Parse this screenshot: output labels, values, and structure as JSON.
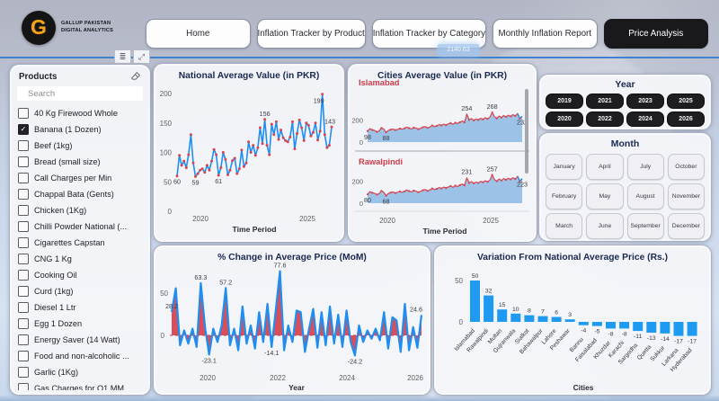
{
  "brand": {
    "line1": "GALLUP PAKISTAN",
    "line2": "DIGITAL ANALYTICS",
    "logo_letter": "G"
  },
  "nav": {
    "items": [
      {
        "label": "Home",
        "active": false
      },
      {
        "label": "Inflation Tracker by Product",
        "active": false
      },
      {
        "label": "Inflation Tracker by Category",
        "active": false
      },
      {
        "label": "Monthly Inflation Report",
        "active": false
      },
      {
        "label": "Price Analysis",
        "active": true
      }
    ]
  },
  "toolbar": {
    "filter_icon": "filter-lines",
    "focus_icon": "expand-arrow"
  },
  "ghost": {
    "value": "2140.63"
  },
  "products_panel": {
    "title": "Products",
    "search_placeholder": "Search",
    "items": [
      {
        "label": "40 Kg Firewood Whole",
        "checked": false
      },
      {
        "label": "Banana (1 Dozen)",
        "checked": true
      },
      {
        "label": "Beef (1kg)",
        "checked": false
      },
      {
        "label": "Bread (small size)",
        "checked": false
      },
      {
        "label": "Call Charges per Min",
        "checked": false
      },
      {
        "label": "Chappal Bata (Gents)",
        "checked": false
      },
      {
        "label": "Chicken (1Kg)",
        "checked": false
      },
      {
        "label": "Chilli Powder National (...",
        "checked": false
      },
      {
        "label": "Cigarettes Capstan",
        "checked": false
      },
      {
        "label": "CNG 1 Kg",
        "checked": false
      },
      {
        "label": "Cooking Oil",
        "checked": false
      },
      {
        "label": "Curd (1kg)",
        "checked": false
      },
      {
        "label": "Diesel 1 Ltr",
        "checked": false
      },
      {
        "label": "Egg 1 Dozen",
        "checked": false
      },
      {
        "label": "Energy Saver (14 Watt)",
        "checked": false
      },
      {
        "label": "Food and non-alcoholic ...",
        "checked": false
      },
      {
        "label": "Garlic (1Kg)",
        "checked": false
      },
      {
        "label": "Gas Charges for Q1 MM...",
        "checked": false
      }
    ]
  },
  "year_panel": {
    "title": "Year",
    "years": [
      "2019",
      "2021",
      "2023",
      "2025",
      "2020",
      "2022",
      "2024",
      "2026"
    ]
  },
  "month_panel": {
    "title": "Month",
    "months": [
      "January",
      "April",
      "July",
      "October",
      "February",
      "May",
      "August",
      "November",
      "March",
      "June",
      "September",
      "December"
    ]
  },
  "chart_data": [
    {
      "type": "line",
      "title": "National Average Value (in PKR)",
      "xlabel": "Time Period",
      "x_ticks": [
        "2020",
        "2025"
      ],
      "y_ticks": [
        0,
        50,
        100,
        150,
        200
      ],
      "ylim": [
        0,
        200
      ],
      "values": [
        60,
        95,
        78,
        85,
        74,
        96,
        130,
        82,
        59,
        64,
        70,
        72,
        66,
        78,
        70,
        85,
        105,
        96,
        61,
        74,
        100,
        88,
        62,
        70,
        86,
        90,
        64,
        72,
        104,
        76,
        82,
        118,
        100,
        112,
        95,
        108,
        142,
        115,
        156,
        112,
        96,
        148,
        130,
        152,
        122,
        138,
        125,
        120,
        118,
        126,
        152,
        106,
        132,
        155,
        142,
        120,
        150,
        146,
        128,
        134,
        150,
        121,
        136,
        199,
        130,
        108,
        112,
        143
      ],
      "point_labels": [
        {
          "i": 0,
          "text": "60",
          "pos": "below"
        },
        {
          "i": 8,
          "text": "59",
          "pos": "below"
        },
        {
          "i": 18,
          "text": "61",
          "pos": "below"
        },
        {
          "i": 38,
          "text": "156",
          "pos": "above"
        },
        {
          "i": 63,
          "text": "199",
          "pos": "above",
          "dx": -4,
          "dy": 14
        },
        {
          "i": 67,
          "text": "143",
          "pos": "above",
          "dx": -2
        }
      ]
    },
    {
      "type": "area",
      "title": "Cities Average Value (in PKR)",
      "xlabel": "Time Period",
      "x_ticks": [
        "2020",
        "2025"
      ],
      "series": [
        {
          "name": "Islamabad",
          "y_ticks": [
            0,
            200
          ],
          "values": [
            98,
            122,
            110,
            106,
            92,
            100,
            128,
            118,
            88,
            105,
            112,
            118,
            108,
            114,
            122,
            116,
            124,
            135,
            126,
            118,
            130,
            126,
            116,
            124,
            134,
            140,
            128,
            136,
            150,
            140,
            146,
            158,
            150,
            162,
            154,
            165,
            172,
            160,
            175,
            168,
            180,
            190,
            178,
            254,
            200,
            212,
            196,
            208,
            200,
            215,
            205,
            220,
            210,
            225,
            268,
            230,
            215,
            235,
            222,
            240,
            228,
            242,
            232,
            248,
            236,
            258,
            212,
            232
          ],
          "point_labels": [
            {
              "i": 0,
              "text": "98",
              "pos": "below"
            },
            {
              "i": 8,
              "text": "88",
              "pos": "below"
            },
            {
              "i": 43,
              "text": "254",
              "pos": "above"
            },
            {
              "i": 54,
              "text": "268",
              "pos": "above"
            },
            {
              "i": 67,
              "text": "232",
              "pos": "below"
            }
          ]
        },
        {
          "name": "Rawalpindi",
          "y_ticks": [
            0,
            200
          ],
          "values": [
            80,
            105,
            95,
            90,
            78,
            86,
            112,
            100,
            68,
            88,
            96,
            102,
            92,
            98,
            106,
            100,
            108,
            120,
            110,
            102,
            114,
            110,
            100,
            108,
            118,
            124,
            112,
            120,
            134,
            124,
            130,
            142,
            134,
            146,
            138,
            148,
            156,
            144,
            160,
            152,
            164,
            174,
            162,
            231,
            184,
            196,
            180,
            192,
            184,
            198,
            190,
            204,
            194,
            210,
            257,
            214,
            200,
            220,
            206,
            224,
            212,
            226,
            216,
            232,
            220,
            244,
            198,
            223
          ],
          "point_labels": [
            {
              "i": 0,
              "text": "80",
              "pos": "below"
            },
            {
              "i": 8,
              "text": "68",
              "pos": "below"
            },
            {
              "i": 43,
              "text": "231",
              "pos": "above"
            },
            {
              "i": 54,
              "text": "257",
              "pos": "above"
            },
            {
              "i": 67,
              "text": "223",
              "pos": "below"
            }
          ]
        }
      ]
    },
    {
      "type": "area",
      "title": "% Change in Average Price (MoM)",
      "xlabel": "Year",
      "x_ticks": [
        "2020",
        "2022",
        "2024",
        "2026"
      ],
      "y_ticks": [
        0,
        50
      ],
      "values": [
        28.2,
        57,
        -12,
        6,
        -10,
        8,
        -14,
        63.3,
        10,
        -23.1,
        8,
        -8,
        12,
        57.2,
        -12,
        8,
        -18,
        35,
        -10,
        12,
        -16,
        28,
        -8,
        38,
        -14.1,
        30,
        77.6,
        -18,
        12,
        -8,
        30,
        28,
        -20,
        8,
        32,
        -15,
        28,
        -12,
        35,
        -10,
        25,
        -14,
        30,
        -8,
        -24.2,
        12,
        -8,
        6,
        -4,
        8,
        -6,
        28,
        -16,
        22,
        18,
        -20,
        38,
        -18,
        10,
        -15,
        24.6
      ],
      "point_labels": [
        {
          "i": 0,
          "text": "28.2",
          "pos": "above"
        },
        {
          "i": 7,
          "text": "63.3",
          "pos": "above"
        },
        {
          "i": 13,
          "text": "57.2",
          "pos": "above"
        },
        {
          "i": 26,
          "text": "77.6",
          "pos": "above"
        },
        {
          "i": 9,
          "text": "-23.1",
          "pos": "below"
        },
        {
          "i": 24,
          "text": "-14.1",
          "pos": "below"
        },
        {
          "i": 44,
          "text": "-24.2",
          "pos": "below"
        },
        {
          "i": 60,
          "text": "24.6",
          "pos": "above",
          "dx": -6
        }
      ]
    },
    {
      "type": "bar",
      "title": "Variation From National Average Price (Rs.)",
      "xlabel": "Cities",
      "y_ticks": [
        0,
        50
      ],
      "categories": [
        "Islamabad",
        "Rawalpindi",
        "Multan",
        "Gujranwala",
        "Sialkot",
        "Bahawalpur",
        "Lahore",
        "Peshawar",
        "Bannu",
        "Faisalabad",
        "Khuzdar",
        "Karachi",
        "Sargodha",
        "Quetta",
        "Sukkur",
        "Larkana",
        "Hyderabad"
      ],
      "values": [
        50,
        32,
        15,
        10,
        8,
        7,
        6,
        3,
        -4,
        -5,
        -8,
        -8,
        -11,
        -13,
        -14,
        -17,
        -17
      ]
    }
  ]
}
